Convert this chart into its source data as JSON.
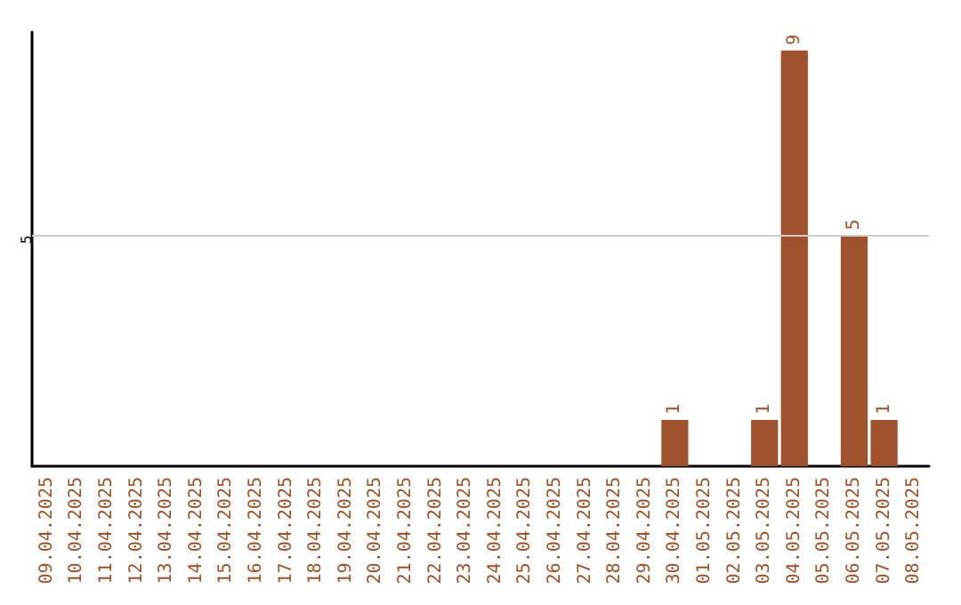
{
  "chart_data": {
    "type": "bar",
    "categories": [
      "09.04.2025",
      "10.04.2025",
      "11.04.2025",
      "12.04.2025",
      "13.04.2025",
      "14.04.2025",
      "15.04.2025",
      "16.04.2025",
      "17.04.2025",
      "18.04.2025",
      "19.04.2025",
      "20.04.2025",
      "21.04.2025",
      "22.04.2025",
      "23.04.2025",
      "24.04.2025",
      "25.04.2025",
      "26.04.2025",
      "27.04.2025",
      "28.04.2025",
      "29.04.2025",
      "30.04.2025",
      "01.05.2025",
      "02.05.2025",
      "03.05.2025",
      "04.05.2025",
      "05.05.2025",
      "06.05.2025",
      "07.05.2025",
      "08.05.2025"
    ],
    "values": [
      null,
      null,
      null,
      null,
      null,
      null,
      null,
      null,
      null,
      null,
      null,
      null,
      null,
      null,
      null,
      null,
      null,
      null,
      null,
      null,
      null,
      1,
      null,
      null,
      1,
      9,
      null,
      5,
      1,
      null
    ],
    "value_labels": [
      null,
      null,
      null,
      null,
      null,
      null,
      null,
      null,
      null,
      null,
      null,
      null,
      null,
      null,
      null,
      null,
      null,
      null,
      null,
      null,
      null,
      "1",
      null,
      null,
      "1",
      "9",
      null,
      "5",
      "1",
      null
    ],
    "color": "#a0522d",
    "ylim": [
      0,
      9.4
    ],
    "ref_lines": [
      {
        "axis": "y",
        "value": 5,
        "label": "5",
        "color": "#cccccc",
        "line_style": "solid"
      }
    ]
  }
}
